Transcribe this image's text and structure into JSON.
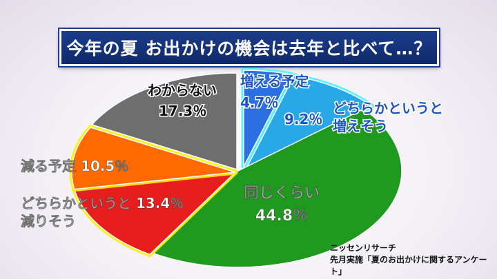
{
  "title": "今年の夏 お出かけの機会は去年と比べて…？",
  "chart_data": {
    "type": "pie",
    "title": "今年の夏 お出かけの機会は去年と比べて…？",
    "slices": [
      {
        "label": "増える予定",
        "value": 4.7,
        "value_text": "4.7％",
        "color": "#2b6fe0"
      },
      {
        "label": "どちらかというと増えそう",
        "value": 9.2,
        "value_text": "9.2％",
        "color": "#29a8e8"
      },
      {
        "label": "同じくらい",
        "value": 44.8,
        "value_text": "44.8％",
        "color": "#1f9a1f"
      },
      {
        "label": "どちらかというと減りそう",
        "value": 13.4,
        "value_text": "13.4％",
        "color": "#e81d1d"
      },
      {
        "label": "減る予定",
        "value": 10.5,
        "value_text": "10.5％",
        "color": "#ff6a00"
      },
      {
        "label": "わからない",
        "value": 17.3,
        "value_text": "17.3％",
        "color": "#6e6e6e"
      }
    ],
    "legend": "none"
  },
  "source": {
    "line1": "ニッセンリサーチ",
    "line2": "先月実施「夏のお出かけに関するアンケート」"
  }
}
